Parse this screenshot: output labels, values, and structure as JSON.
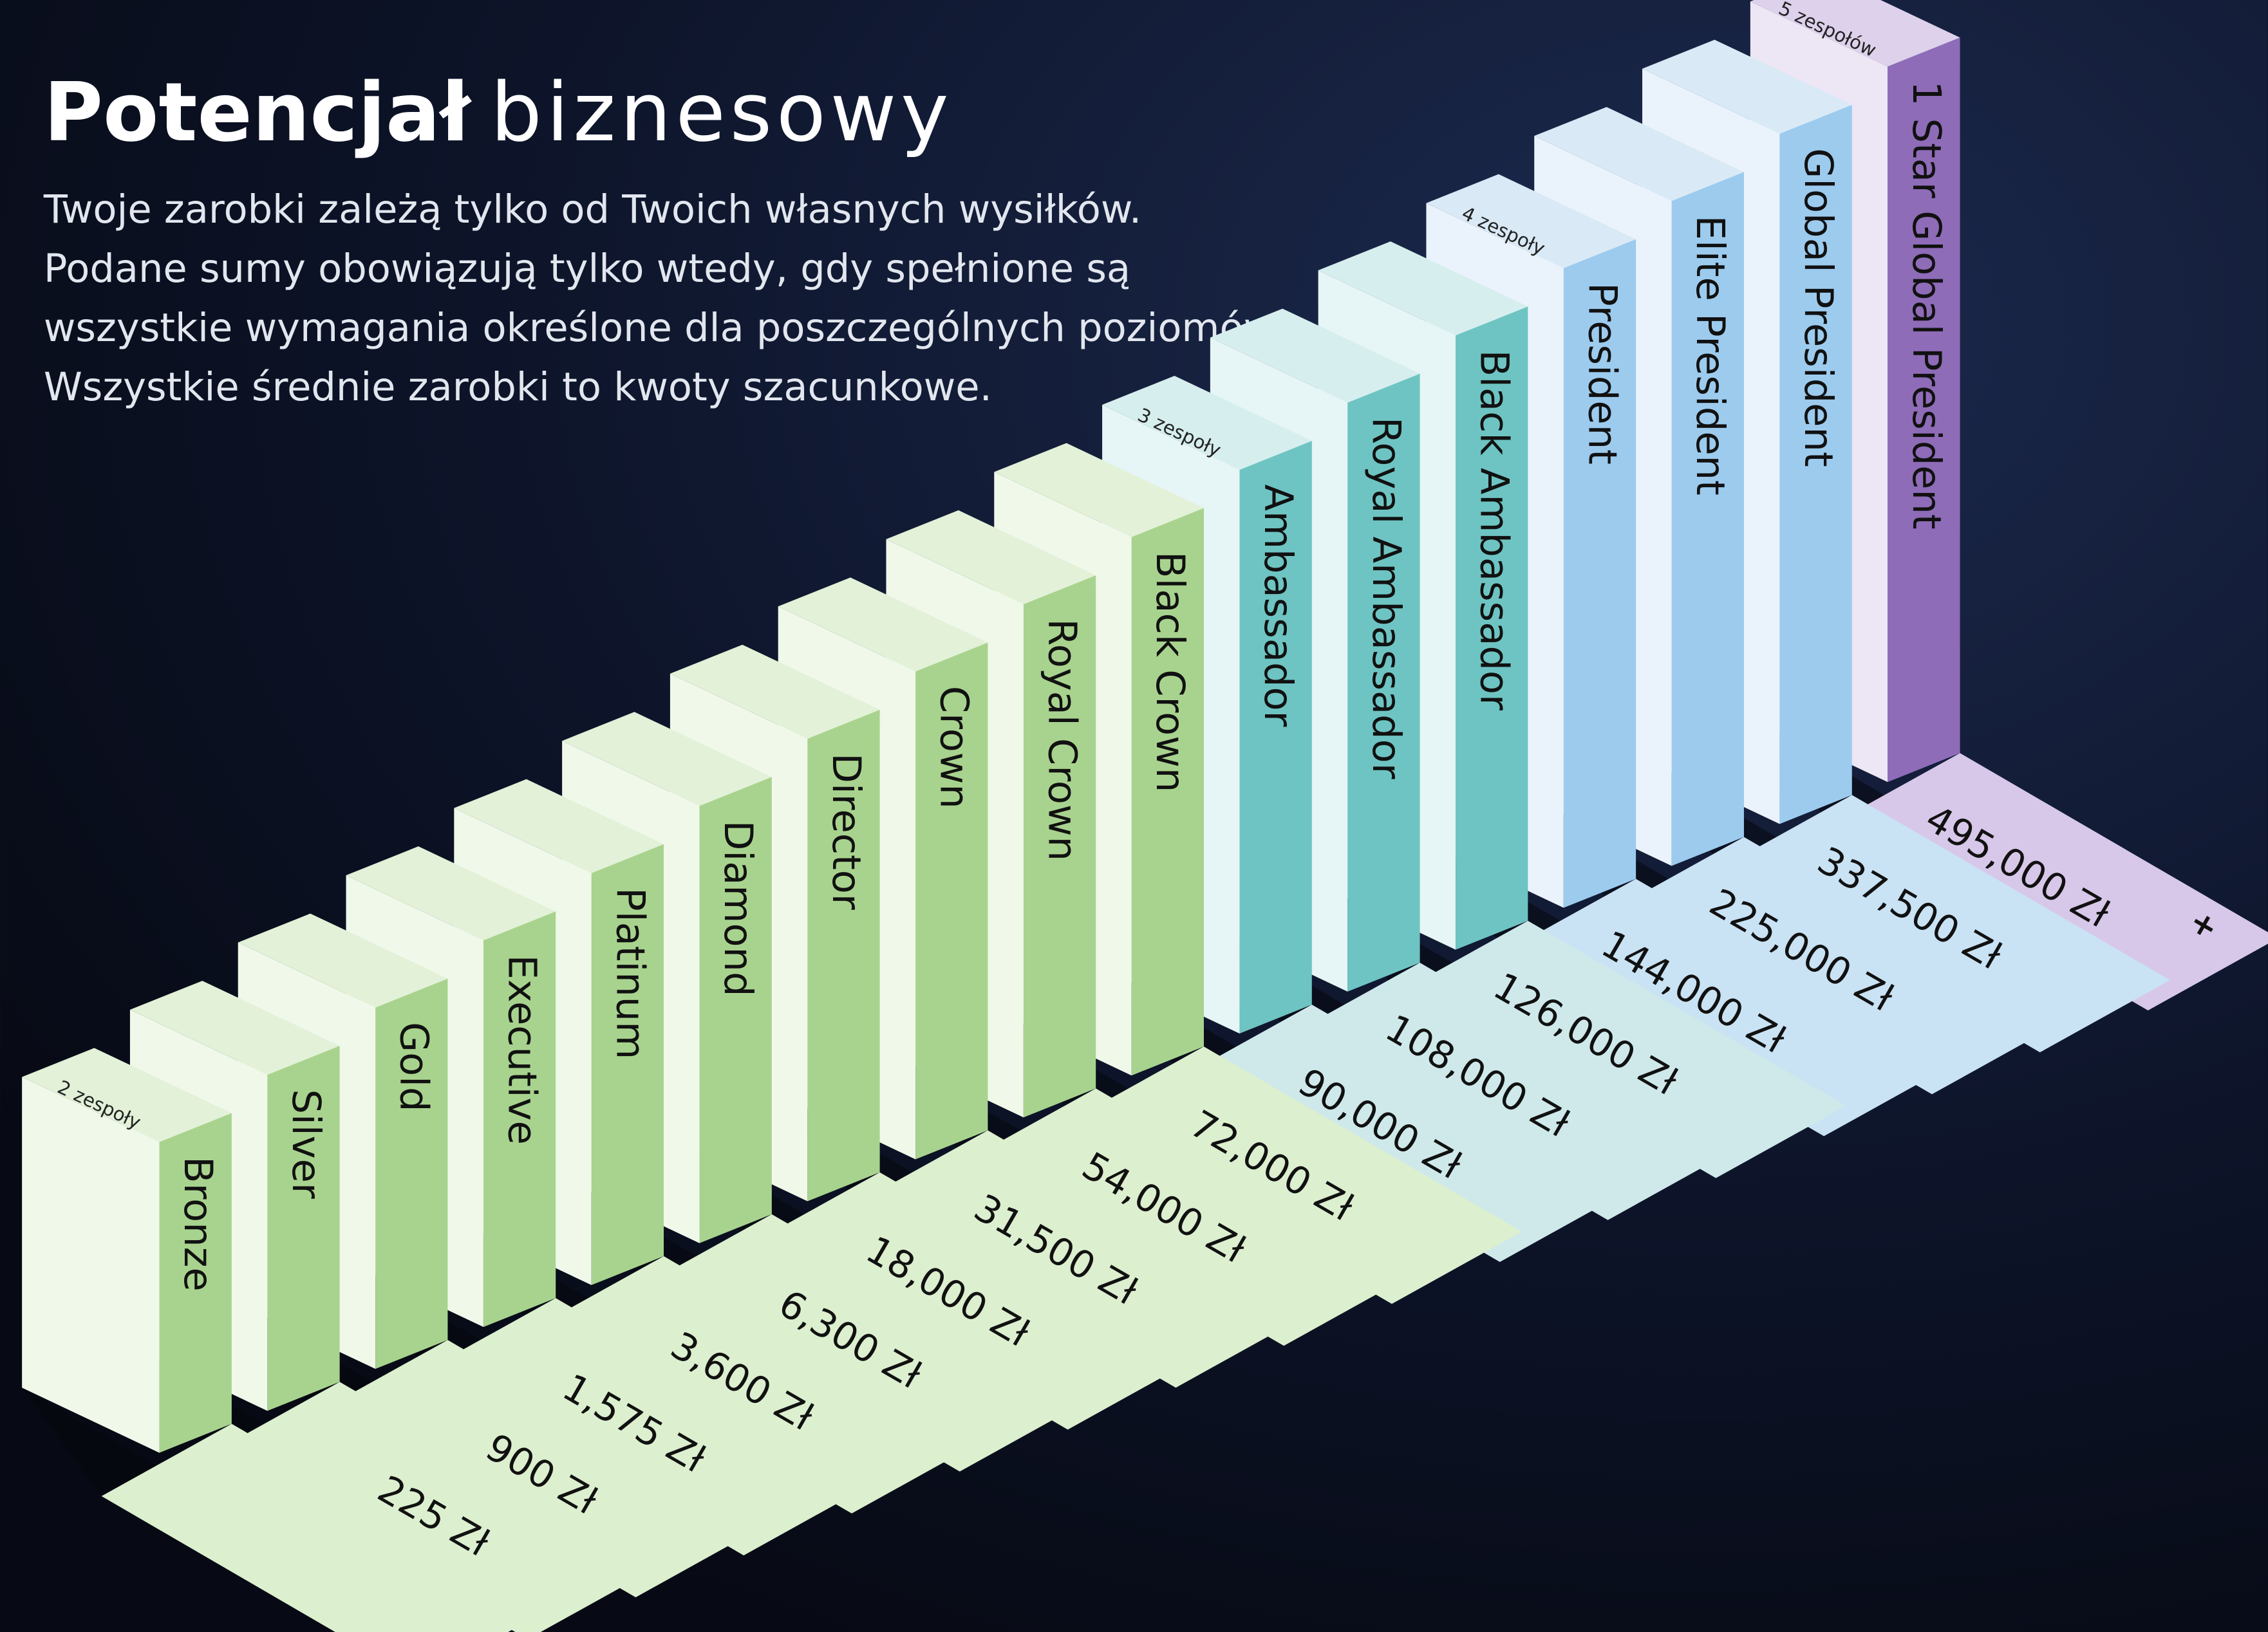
{
  "header": {
    "title_bold": "Potencjał",
    "title_light": "biznesowy",
    "description": [
      "Twoje zarobki zależą tylko od Twoich własnych wysiłków.",
      "Podane sumy obowiązują tylko wtedy, gdy spełnione są",
      "wszystkie wymagania określone dla poszczególnych poziomów.",
      "Wszystkie średnie zarobki to kwoty szacunkowe."
    ]
  },
  "levels": [
    {
      "name": "Bronze",
      "teams": "2 zespoły"
    },
    {
      "name": "Silver",
      "amount": "225 Zł"
    },
    {
      "name": "Gold",
      "amount": "900 Zł"
    },
    {
      "name": "Executive",
      "amount": "1,575 Zł"
    },
    {
      "name": "Platinum",
      "amount": "3,600 Zł"
    },
    {
      "name": "Diamond",
      "amount": "6,300 Zł"
    },
    {
      "name": "Director",
      "amount": "18,000 Zł"
    },
    {
      "name": "Crown",
      "amount": "31,500 Zł"
    },
    {
      "name": "Royal Crown",
      "amount": "54,000 Zł"
    },
    {
      "name": "Black Crown",
      "amount": "72,000 Zł"
    },
    {
      "name": "Ambassador",
      "amount": "90,000 Zł",
      "teams": "3 zespoły"
    },
    {
      "name": "Royal Ambassador",
      "amount": "108,000 Zł"
    },
    {
      "name": "Black Ambassador",
      "amount": "126,000 Zł"
    },
    {
      "name": "President",
      "amount": "144,000 Zł",
      "teams": "4 zespoły"
    },
    {
      "name": "Elite President",
      "amount": "225,000 Zł"
    },
    {
      "name": "Global President",
      "amount": "337,500 Zł"
    },
    {
      "name": "1 Star Global President",
      "amount": "495,000 Zł",
      "teams": "5 zespołów",
      "suffix": "+"
    }
  ]
}
